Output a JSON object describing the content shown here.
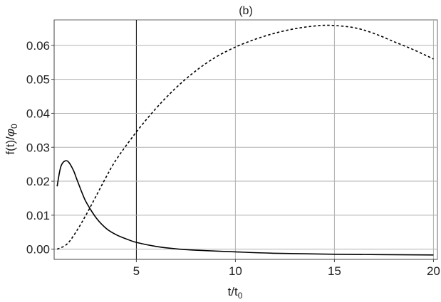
{
  "chart_data": {
    "type": "line",
    "title": "(b)",
    "xlabel": {
      "main": "t/t",
      "sub": "0"
    },
    "ylabel": {
      "prefix": "f(t)/",
      "symbol": "φ",
      "sub": "0"
    },
    "xlim": [
      0.85,
      20.2
    ],
    "ylim": [
      -0.003,
      0.0675
    ],
    "xticks": [
      5,
      10,
      15,
      20
    ],
    "xtick_labels": [
      "5",
      "10",
      "15",
      "20"
    ],
    "yticks": [
      0.0,
      0.01,
      0.02,
      0.03,
      0.04,
      0.05,
      0.06
    ],
    "ytick_labels": [
      "0.00",
      "0.01",
      "0.02",
      "0.03",
      "0.04",
      "0.05",
      "0.06"
    ],
    "grid": true,
    "series": [
      {
        "style": "solid",
        "color": "#000000",
        "x": [
          1.0,
          1.2,
          1.5,
          1.8,
          2.0,
          2.3,
          2.5,
          3.0,
          3.5,
          4.0,
          4.5,
          5.0,
          6.0,
          7.0,
          8.0,
          10.0,
          12.0,
          15.0,
          20.0
        ],
        "y": [
          0.0185,
          0.0245,
          0.026,
          0.0235,
          0.0205,
          0.016,
          0.0135,
          0.009,
          0.006,
          0.0042,
          0.003,
          0.002,
          0.0008,
          0.0001,
          -0.0003,
          -0.0008,
          -0.0012,
          -0.0015,
          -0.0017
        ]
      },
      {
        "style": "dashed",
        "color": "#000000",
        "x": [
          1.0,
          1.5,
          2.0,
          2.5,
          3.0,
          3.5,
          4.0,
          5.0,
          6.0,
          7.0,
          8.0,
          9.0,
          10.0,
          11.0,
          12.0,
          13.0,
          14.0,
          14.8,
          16.0,
          17.0,
          18.0,
          19.0,
          20.0
        ],
        "y": [
          0.0,
          0.0015,
          0.0055,
          0.0105,
          0.016,
          0.0215,
          0.0265,
          0.0345,
          0.0415,
          0.0475,
          0.0525,
          0.0565,
          0.0595,
          0.0618,
          0.0636,
          0.0649,
          0.0657,
          0.0659,
          0.0652,
          0.0635,
          0.0611,
          0.0587,
          0.056
        ]
      }
    ]
  }
}
